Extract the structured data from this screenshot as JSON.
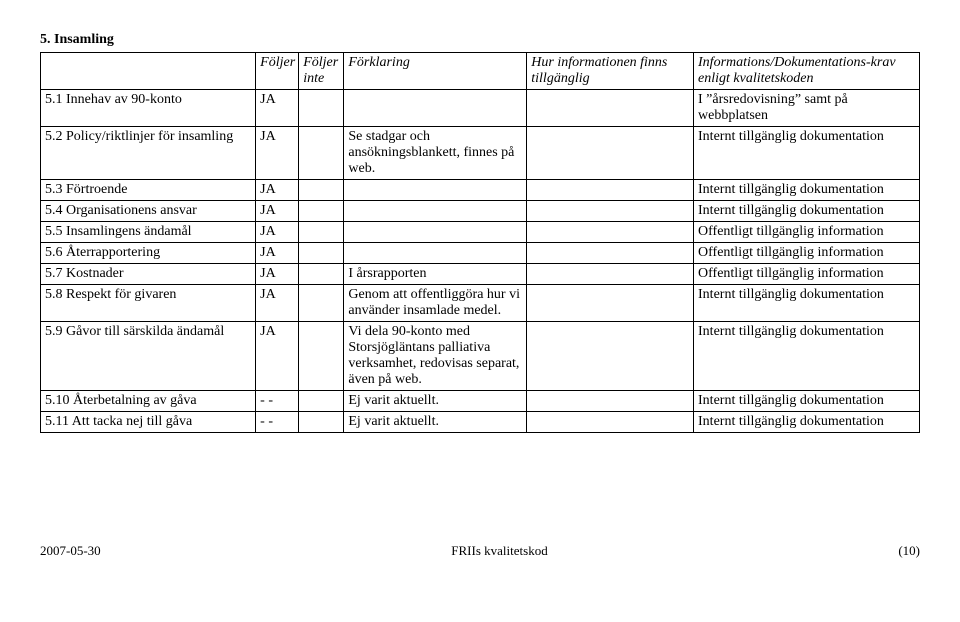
{
  "section_title": "5. Insamling",
  "headers": {
    "label": "",
    "foljer": "Följer",
    "foljer_inte": "Följer inte",
    "forklaring": "Förklaring",
    "tillganglig": "Hur informationen finns tillgänglig",
    "krav": "Informations/Dokumentations-krav enligt kvalitetskoden"
  },
  "rows": [
    {
      "label": "5.1 Innehav av 90-konto",
      "f1": "JA",
      "f2": "",
      "expl": "",
      "avail": "",
      "req": "I ”årsredovisning” samt på webbplatsen"
    },
    {
      "label": "5.2 Policy/riktlinjer för insamling",
      "f1": "JA",
      "f2": "",
      "expl": "Se stadgar och ansökningsblankett, finnes på web.",
      "avail": "",
      "req": "Internt tillgänglig dokumentation"
    },
    {
      "label": "5.3 Förtroende",
      "f1": "JA",
      "f2": "",
      "expl": "",
      "avail": "",
      "req": "Internt tillgänglig dokumentation"
    },
    {
      "label": "5.4 Organisationens ansvar",
      "f1": "JA",
      "f2": "",
      "expl": "",
      "avail": "",
      "req": "Internt tillgänglig dokumentation"
    },
    {
      "label": "5.5 Insamlingens ändamål",
      "f1": "JA",
      "f2": "",
      "expl": "",
      "avail": "",
      "req": "Offentligt tillgänglig information"
    },
    {
      "label": "5.6 Återrapportering",
      "f1": "JA",
      "f2": "",
      "expl": "",
      "avail": "",
      "req": "Offentligt tillgänglig information"
    },
    {
      "label": "5.7 Kostnader",
      "f1": "JA",
      "f2": "",
      "expl": "I årsrapporten",
      "avail": "",
      "req": "Offentligt tillgänglig information"
    },
    {
      "label": "5.8 Respekt för givaren",
      "f1": "JA",
      "f2": "",
      "expl": "Genom att offentliggöra hur vi använder insamlade medel.",
      "avail": "",
      "req": "Internt tillgänglig dokumentation"
    },
    {
      "label": "5.9 Gåvor till särskilda ändamål",
      "f1": "JA",
      "f2": "",
      "expl": "Vi dela 90-konto med Storsjögläntans palliativa verksamhet, redovisas separat, även på web.",
      "avail": "",
      "req": "Internt tillgänglig dokumentation"
    },
    {
      "label": "5.10 Återbetalning av gåva",
      "f1": "- -",
      "f2": "",
      "expl": "Ej varit aktuellt.",
      "avail": "",
      "req": "Internt tillgänglig dokumentation"
    },
    {
      "label": "5.11 Att tacka nej till gåva",
      "f1": "- -",
      "f2": "",
      "expl": "Ej varit aktuellt.",
      "avail": "",
      "req": "Internt tillgänglig dokumentation"
    }
  ],
  "footer": {
    "left": "2007-05-30",
    "center": "FRIIs kvalitetskod",
    "right": "(10)"
  }
}
